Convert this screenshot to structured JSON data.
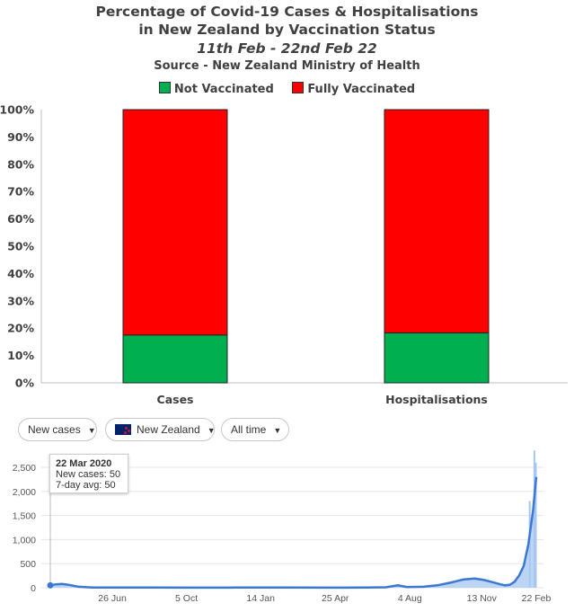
{
  "chart_data": [
    {
      "type": "bar",
      "stacked": true,
      "title": "Percentage of Covid-19 Cases & Hospitalisations",
      "title_line2": "in New Zealand by Vaccination Status",
      "subtitle": "11th Feb - 22nd Feb 22",
      "source": "Source - New Zealand Ministry of Health",
      "categories": [
        "Cases",
        "Hospitalisations"
      ],
      "series": [
        {
          "name": "Not Vaccinated",
          "values": [
            17.5,
            18.3
          ],
          "color": "#00b050"
        },
        {
          "name": "Fully Vaccinated",
          "values": [
            82.5,
            81.7
          ],
          "color": "#ff0000"
        }
      ],
      "ylim": [
        0,
        100
      ],
      "yticks": [
        "0%",
        "10%",
        "20%",
        "30%",
        "40%",
        "50%",
        "60%",
        "70%",
        "80%",
        "90%",
        "100%"
      ],
      "grid": false,
      "legend": "top"
    },
    {
      "type": "area",
      "ylim": [
        0,
        2500
      ],
      "yticks": [
        "0",
        "500",
        "1,000",
        "1,500",
        "2,000",
        "2,500"
      ],
      "xticks": [
        "26 Jun",
        "5 Oct",
        "14 Jan",
        "25 Apr",
        "4 Aug",
        "13 Nov",
        "22 Feb"
      ],
      "grid": true,
      "series": [
        {
          "name": "New cases",
          "color": "#a7c7f2"
        },
        {
          "name": "7-day avg",
          "color": "#3a78d4"
        }
      ],
      "points": [
        [
          0,
          50
        ],
        [
          0.012,
          70
        ],
        [
          0.025,
          80
        ],
        [
          0.04,
          60
        ],
        [
          0.06,
          20
        ],
        [
          0.09,
          5
        ],
        [
          0.2,
          3
        ],
        [
          0.3,
          2
        ],
        [
          0.4,
          4
        ],
        [
          0.5,
          3
        ],
        [
          0.6,
          2
        ],
        [
          0.68,
          3
        ],
        [
          0.72,
          10
        ],
        [
          0.745,
          50
        ],
        [
          0.765,
          15
        ],
        [
          0.8,
          20
        ],
        [
          0.83,
          50
        ],
        [
          0.86,
          110
        ],
        [
          0.885,
          170
        ],
        [
          0.91,
          190
        ],
        [
          0.93,
          160
        ],
        [
          0.95,
          110
        ],
        [
          0.965,
          70
        ],
        [
          0.975,
          50
        ],
        [
          0.985,
          60
        ],
        [
          0.995,
          120
        ],
        [
          1.005,
          250
        ],
        [
          1.015,
          450
        ],
        [
          1.025,
          900
        ],
        [
          1.035,
          1600
        ],
        [
          1.042,
          2300
        ]
      ],
      "tooltip": {
        "date": "22 Mar 2020",
        "new_cases": "New cases: 50",
        "avg": "7-day avg: 50"
      }
    }
  ],
  "controls": {
    "metric": "New cases",
    "country": "New Zealand",
    "range": "All time"
  }
}
